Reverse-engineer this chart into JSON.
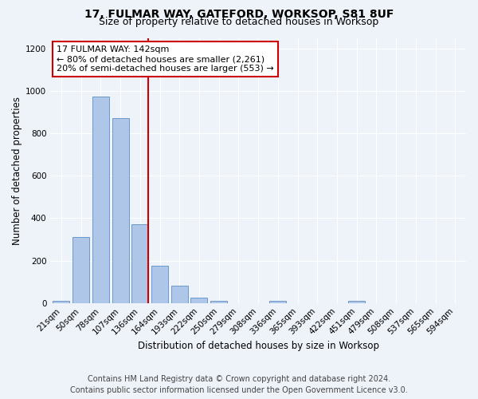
{
  "title_line1": "17, FULMAR WAY, GATEFORD, WORKSOP, S81 8UF",
  "title_line2": "Size of property relative to detached houses in Worksop",
  "xlabel": "Distribution of detached houses by size in Worksop",
  "ylabel": "Number of detached properties",
  "bin_labels": [
    "21sqm",
    "50sqm",
    "78sqm",
    "107sqm",
    "136sqm",
    "164sqm",
    "193sqm",
    "222sqm",
    "250sqm",
    "279sqm",
    "308sqm",
    "336sqm",
    "365sqm",
    "393sqm",
    "422sqm",
    "451sqm",
    "479sqm",
    "508sqm",
    "537sqm",
    "565sqm",
    "594sqm"
  ],
  "bar_heights": [
    10,
    310,
    975,
    870,
    370,
    175,
    80,
    25,
    10,
    0,
    0,
    10,
    0,
    0,
    0,
    10,
    0,
    0,
    0,
    0,
    0
  ],
  "bar_color": "#aec6e8",
  "bar_edge_color": "#5b8fc9",
  "annotation_box_text": "17 FULMAR WAY: 142sqm\n← 80% of detached houses are smaller (2,261)\n20% of semi-detached houses are larger (553) →",
  "annotation_box_color": "#ffffff",
  "annotation_box_edge_color": "#cc0000",
  "vline_color": "#cc0000",
  "vline_x": 4.43,
  "ylim": [
    0,
    1250
  ],
  "yticks": [
    0,
    200,
    400,
    600,
    800,
    1000,
    1200
  ],
  "footnote_line1": "Contains HM Land Registry data © Crown copyright and database right 2024.",
  "footnote_line2": "Contains public sector information licensed under the Open Government Licence v3.0.",
  "bg_color": "#eef2f9",
  "plot_bg_color": "#eef2f9",
  "grid_color": "#ffffff",
  "title1_fontsize": 10,
  "title2_fontsize": 9,
  "axis_label_fontsize": 8.5,
  "tick_fontsize": 7.5,
  "footnote_fontsize": 7,
  "annotation_fontsize": 8
}
